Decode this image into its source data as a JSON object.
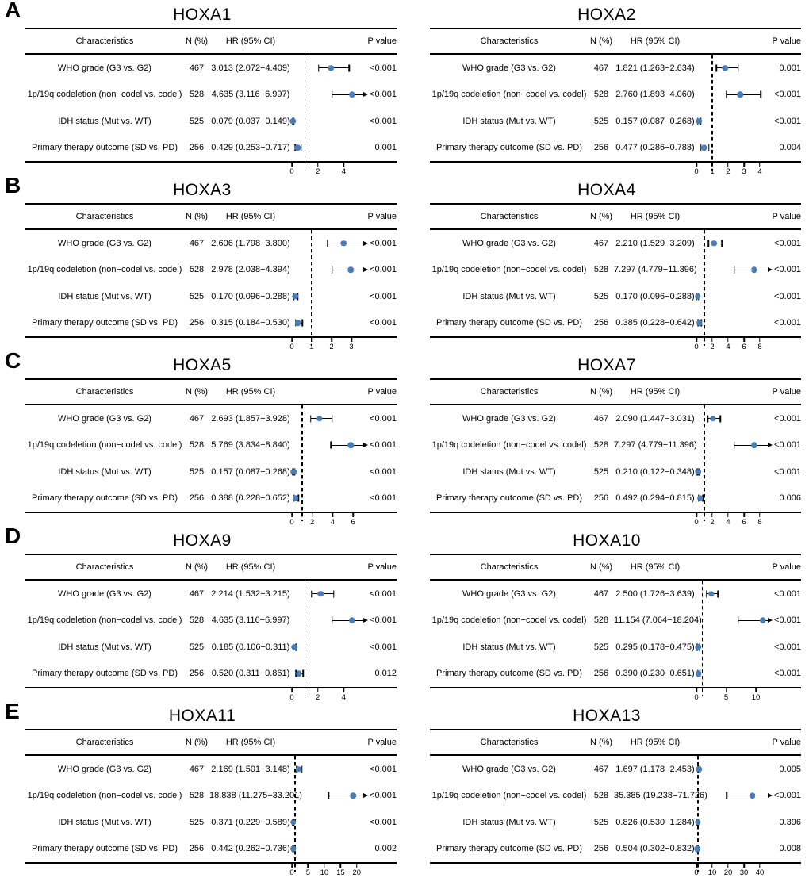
{
  "figure_meta": {
    "section_labels": [
      "A",
      "B",
      "C",
      "D",
      "E"
    ],
    "marker_color": "#4a7ebb",
    "line_color": "#000000",
    "reference_value": 1
  },
  "chart_data": [
    {
      "type": "scatter",
      "subtype": "forest-plot",
      "section": "A",
      "title": "HOXA1",
      "columns": [
        "Characteristics",
        "N (%)",
        "HR (95% CI)",
        "P value"
      ],
      "xlim": [
        0,
        5.5
      ],
      "ticks": [
        0,
        2,
        4
      ],
      "ref_line": 1,
      "rows": [
        {
          "characteristic": "WHO grade (G3 vs. G2)",
          "n": "467",
          "hr_ci": "3.013 (2.072−4.409)",
          "p": "<0.001",
          "hr": 3.013,
          "ci_low": 2.072,
          "ci_high": 4.409
        },
        {
          "characteristic": "1p/19q codeletion (non−codel vs. codel)",
          "n": "528",
          "hr_ci": "4.635 (3.116−6.997)",
          "p": "<0.001",
          "hr": 4.635,
          "ci_low": 3.116,
          "ci_high": 6.997
        },
        {
          "characteristic": "IDH status (Mut vs. WT)",
          "n": "525",
          "hr_ci": "0.079 (0.037−0.149)",
          "p": "<0.001",
          "hr": 0.079,
          "ci_low": 0.037,
          "ci_high": 0.149
        },
        {
          "characteristic": "Primary therapy outcome (SD vs. PD)",
          "n": "256",
          "hr_ci": "0.429 (0.253−0.717)",
          "p": "0.001",
          "hr": 0.429,
          "ci_low": 0.253,
          "ci_high": 0.717
        }
      ]
    },
    {
      "type": "scatter",
      "subtype": "forest-plot",
      "section": "A",
      "title": "HOXA2",
      "columns": [
        "Characteristics",
        "N (%)",
        "HR (95% CI)",
        "P value"
      ],
      "xlim": [
        0,
        4.5
      ],
      "ticks": [
        0,
        1,
        2,
        3,
        4
      ],
      "ref_line": 1,
      "rows": [
        {
          "characteristic": "WHO grade (G3 vs. G2)",
          "n": "467",
          "hr_ci": "1.821 (1.263−2.634)",
          "p": "0.001",
          "hr": 1.821,
          "ci_low": 1.263,
          "ci_high": 2.634
        },
        {
          "characteristic": "1p/19q codeletion (non−codel vs. codel)",
          "n": "528",
          "hr_ci": "2.760 (1.893−4.060)",
          "p": "<0.001",
          "hr": 2.76,
          "ci_low": 1.893,
          "ci_high": 4.06
        },
        {
          "characteristic": "IDH status (Mut vs. WT)",
          "n": "525",
          "hr_ci": "0.157 (0.087−0.268)",
          "p": "<0.001",
          "hr": 0.157,
          "ci_low": 0.087,
          "ci_high": 0.268
        },
        {
          "characteristic": "Primary therapy outcome (SD vs. PD)",
          "n": "256",
          "hr_ci": "0.477 (0.286−0.788)",
          "p": "0.004",
          "hr": 0.477,
          "ci_low": 0.286,
          "ci_high": 0.788
        }
      ]
    },
    {
      "type": "scatter",
      "subtype": "forest-plot",
      "section": "B",
      "title": "HOXA3",
      "columns": [
        "Characteristics",
        "N (%)",
        "HR (95% CI)",
        "P value"
      ],
      "xlim": [
        0,
        3.6
      ],
      "ticks": [
        0,
        1,
        2,
        3
      ],
      "ref_line": 1,
      "rows": [
        {
          "characteristic": "WHO grade (G3 vs. G2)",
          "n": "467",
          "hr_ci": "2.606 (1.798−3.800)",
          "p": "<0.001",
          "hr": 2.606,
          "ci_low": 1.798,
          "ci_high": 3.8
        },
        {
          "characteristic": "1p/19q codeletion (non−codel vs. codel)",
          "n": "528",
          "hr_ci": "2.978 (2.038−4.394)",
          "p": "<0.001",
          "hr": 2.978,
          "ci_low": 2.038,
          "ci_high": 4.394
        },
        {
          "characteristic": "IDH status (Mut vs. WT)",
          "n": "525",
          "hr_ci": "0.170 (0.096−0.288)",
          "p": "<0.001",
          "hr": 0.17,
          "ci_low": 0.096,
          "ci_high": 0.288
        },
        {
          "characteristic": "Primary therapy outcome (SD vs. PD)",
          "n": "256",
          "hr_ci": "0.315 (0.184−0.530)",
          "p": "<0.001",
          "hr": 0.315,
          "ci_low": 0.184,
          "ci_high": 0.53
        }
      ]
    },
    {
      "type": "scatter",
      "subtype": "forest-plot",
      "section": "B",
      "title": "HOXA4",
      "columns": [
        "Characteristics",
        "N (%)",
        "HR (95% CI)",
        "P value"
      ],
      "xlim": [
        0,
        9
      ],
      "ticks": [
        0,
        2,
        4,
        6,
        8
      ],
      "ref_line": 1,
      "rows": [
        {
          "characteristic": "WHO grade (G3 vs. G2)",
          "n": "467",
          "hr_ci": "2.210 (1.529−3.209)",
          "p": "<0.001",
          "hr": 2.21,
          "ci_low": 1.529,
          "ci_high": 3.209
        },
        {
          "characteristic": "1p/19q codeletion (non−codel vs. codel)",
          "n": "528",
          "hr_ci": "7.297 (4.779−11.396)",
          "p": "<0.001",
          "hr": 7.297,
          "ci_low": 4.779,
          "ci_high": 11.396
        },
        {
          "characteristic": "IDH status (Mut vs. WT)",
          "n": "525",
          "hr_ci": "0.170 (0.096−0.288)",
          "p": "<0.001",
          "hr": 0.17,
          "ci_low": 0.096,
          "ci_high": 0.288
        },
        {
          "characteristic": "Primary therapy outcome (SD vs. PD)",
          "n": "256",
          "hr_ci": "0.385 (0.228−0.642)",
          "p": "<0.001",
          "hr": 0.385,
          "ci_low": 0.228,
          "ci_high": 0.642
        }
      ]
    },
    {
      "type": "scatter",
      "subtype": "forest-plot",
      "section": "C",
      "title": "HOXA5",
      "columns": [
        "Characteristics",
        "N (%)",
        "HR (95% CI)",
        "P value"
      ],
      "xlim": [
        0,
        7
      ],
      "ticks": [
        0,
        2,
        4,
        6
      ],
      "ref_line": 1,
      "rows": [
        {
          "characteristic": "WHO grade (G3 vs. G2)",
          "n": "467",
          "hr_ci": "2.693 (1.857−3.928)",
          "p": "<0.001",
          "hr": 2.693,
          "ci_low": 1.857,
          "ci_high": 3.928
        },
        {
          "characteristic": "1p/19q codeletion (non−codel vs. codel)",
          "n": "528",
          "hr_ci": "5.769 (3.834−8.840)",
          "p": "<0.001",
          "hr": 5.769,
          "ci_low": 3.834,
          "ci_high": 8.84
        },
        {
          "characteristic": "IDH status (Mut vs. WT)",
          "n": "525",
          "hr_ci": "0.157 (0.087−0.268)",
          "p": "<0.001",
          "hr": 0.157,
          "ci_low": 0.087,
          "ci_high": 0.268
        },
        {
          "characteristic": "Primary therapy outcome (SD vs. PD)",
          "n": "256",
          "hr_ci": "0.388 (0.228−0.652)",
          "p": "<0.001",
          "hr": 0.388,
          "ci_low": 0.228,
          "ci_high": 0.652
        }
      ]
    },
    {
      "type": "scatter",
      "subtype": "forest-plot",
      "section": "C",
      "title": "HOXA7",
      "columns": [
        "Characteristics",
        "N (%)",
        "HR (95% CI)",
        "P value"
      ],
      "xlim": [
        0,
        9
      ],
      "ticks": [
        0,
        2,
        4,
        6,
        8
      ],
      "ref_line": 1,
      "rows": [
        {
          "characteristic": "WHO grade (G3 vs. G2)",
          "n": "467",
          "hr_ci": "2.090 (1.447−3.031)",
          "p": "<0.001",
          "hr": 2.09,
          "ci_low": 1.447,
          "ci_high": 3.031
        },
        {
          "characteristic": "1p/19q codeletion (non−codel vs. codel)",
          "n": "528",
          "hr_ci": "7.297 (4.779−11.396)",
          "p": "<0.001",
          "hr": 7.297,
          "ci_low": 4.779,
          "ci_high": 11.396
        },
        {
          "characteristic": "IDH status (Mut vs. WT)",
          "n": "525",
          "hr_ci": "0.210 (0.122−0.348)",
          "p": "<0.001",
          "hr": 0.21,
          "ci_low": 0.122,
          "ci_high": 0.348
        },
        {
          "characteristic": "Primary therapy outcome (SD vs. PD)",
          "n": "256",
          "hr_ci": "0.492 (0.294−0.815)",
          "p": "0.006",
          "hr": 0.492,
          "ci_low": 0.294,
          "ci_high": 0.815
        }
      ]
    },
    {
      "type": "scatter",
      "subtype": "forest-plot",
      "section": "D",
      "title": "HOXA9",
      "columns": [
        "Characteristics",
        "N (%)",
        "HR (95% CI)",
        "P value"
      ],
      "xlim": [
        0,
        5.5
      ],
      "ticks": [
        0,
        2,
        4
      ],
      "ref_line": 1,
      "rows": [
        {
          "characteristic": "WHO grade (G3 vs. G2)",
          "n": "467",
          "hr_ci": "2.214 (1.532−3.215)",
          "p": "<0.001",
          "hr": 2.214,
          "ci_low": 1.532,
          "ci_high": 3.215
        },
        {
          "characteristic": "1p/19q codeletion (non−codel vs. codel)",
          "n": "528",
          "hr_ci": "4.635 (3.116−6.997)",
          "p": "<0.001",
          "hr": 4.635,
          "ci_low": 3.116,
          "ci_high": 6.997
        },
        {
          "characteristic": "IDH status (Mut vs. WT)",
          "n": "525",
          "hr_ci": "0.185 (0.106−0.311)",
          "p": "<0.001",
          "hr": 0.185,
          "ci_low": 0.106,
          "ci_high": 0.311
        },
        {
          "characteristic": "Primary therapy outcome (SD vs. PD)",
          "n": "256",
          "hr_ci": "0.520 (0.311−0.861)",
          "p": "0.012",
          "hr": 0.52,
          "ci_low": 0.311,
          "ci_high": 0.861
        }
      ]
    },
    {
      "type": "scatter",
      "subtype": "forest-plot",
      "section": "D",
      "title": "HOXA10",
      "columns": [
        "Characteristics",
        "N (%)",
        "HR (95% CI)",
        "P value"
      ],
      "xlim": [
        0,
        12
      ],
      "ticks": [
        0,
        5,
        10
      ],
      "ref_line": 1,
      "rows": [
        {
          "characteristic": "WHO grade (G3 vs. G2)",
          "n": "467",
          "hr_ci": "2.500 (1.726−3.639)",
          "p": "<0.001",
          "hr": 2.5,
          "ci_low": 1.726,
          "ci_high": 3.639
        },
        {
          "characteristic": "1p/19q codeletion (non−codel vs. codel)",
          "n": "528",
          "hr_ci": "11.154 (7.064−18.204)",
          "p": "<0.001",
          "hr": 11.154,
          "ci_low": 7.064,
          "ci_high": 18.204
        },
        {
          "characteristic": "IDH status (Mut vs. WT)",
          "n": "525",
          "hr_ci": "0.295 (0.178−0.475)",
          "p": "<0.001",
          "hr": 0.295,
          "ci_low": 0.178,
          "ci_high": 0.475
        },
        {
          "characteristic": "Primary therapy outcome (SD vs. PD)",
          "n": "256",
          "hr_ci": "0.390 (0.230−0.651)",
          "p": "<0.001",
          "hr": 0.39,
          "ci_low": 0.23,
          "ci_high": 0.651
        }
      ]
    },
    {
      "type": "scatter",
      "subtype": "forest-plot",
      "section": "E",
      "title": "HOXA11",
      "columns": [
        "Characteristics",
        "N (%)",
        "HR (95% CI)",
        "P value"
      ],
      "xlim": [
        0,
        22
      ],
      "ticks": [
        0,
        5,
        10,
        15,
        20
      ],
      "ref_line": 1,
      "rows": [
        {
          "characteristic": "WHO grade (G3 vs. G2)",
          "n": "467",
          "hr_ci": "2.169 (1.501−3.148)",
          "p": "<0.001",
          "hr": 2.169,
          "ci_low": 1.501,
          "ci_high": 3.148
        },
        {
          "characteristic": "1p/19q codeletion (non−codel vs. codel)",
          "n": "528",
          "hr_ci": "18.838 (11.275−33.201)",
          "p": "<0.001",
          "hr": 18.838,
          "ci_low": 11.275,
          "ci_high": 33.201
        },
        {
          "characteristic": "IDH status (Mut vs. WT)",
          "n": "525",
          "hr_ci": "0.371 (0.229−0.589)",
          "p": "<0.001",
          "hr": 0.371,
          "ci_low": 0.229,
          "ci_high": 0.589
        },
        {
          "characteristic": "Primary therapy outcome (SD vs. PD)",
          "n": "256",
          "hr_ci": "0.442 (0.262−0.736)",
          "p": "0.002",
          "hr": 0.442,
          "ci_low": 0.262,
          "ci_high": 0.736
        }
      ]
    },
    {
      "type": "scatter",
      "subtype": "forest-plot",
      "section": "E",
      "title": "HOXA13",
      "columns": [
        "Characteristics",
        "N (%)",
        "HR (95% CI)",
        "P value"
      ],
      "xlim": [
        0,
        45
      ],
      "ticks": [
        0,
        10,
        20,
        30,
        40
      ],
      "ref_line": 1,
      "rows": [
        {
          "characteristic": "WHO grade (G3 vs. G2)",
          "n": "467",
          "hr_ci": "1.697 (1.178−2.453)",
          "p": "0.005",
          "hr": 1.697,
          "ci_low": 1.178,
          "ci_high": 2.453
        },
        {
          "characteristic": "1p/19q codeletion (non−codel vs. codel)",
          "n": "528",
          "hr_ci": "35.385 (19.238−71.726)",
          "p": "<0.001",
          "hr": 35.385,
          "ci_low": 19.238,
          "ci_high": 71.726
        },
        {
          "characteristic": "IDH status (Mut vs. WT)",
          "n": "525",
          "hr_ci": "0.826 (0.530−1.284)",
          "p": "0.396",
          "hr": 0.826,
          "ci_low": 0.53,
          "ci_high": 1.284
        },
        {
          "characteristic": "Primary therapy outcome (SD vs. PD)",
          "n": "256",
          "hr_ci": "0.504 (0.302−0.832)",
          "p": "0.008",
          "hr": 0.504,
          "ci_low": 0.302,
          "ci_high": 0.832
        }
      ]
    }
  ]
}
